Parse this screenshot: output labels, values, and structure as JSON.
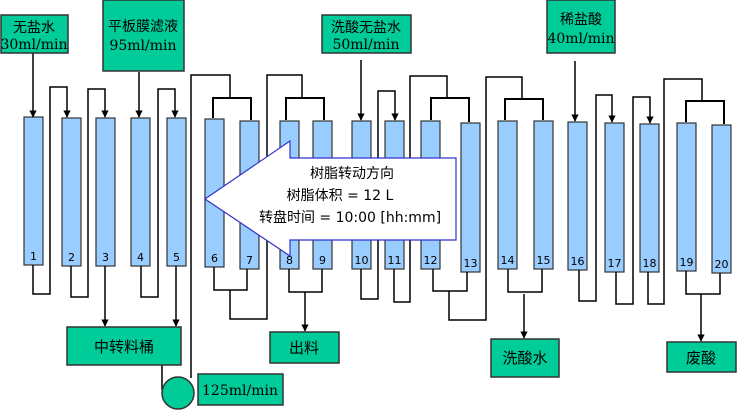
{
  "inputs": {
    "water": {
      "label": "无盐水",
      "rate": "30ml/min"
    },
    "filtrate": {
      "label": "平板膜滤液",
      "rate": "95ml/min"
    },
    "acid_wash_water": {
      "label": "洗酸无盐水",
      "rate": "50ml/min"
    },
    "dilute_acid": {
      "label": "稀盐酸",
      "rate": "40ml/min"
    }
  },
  "outputs": {
    "transfer_tank": "中转料桶",
    "discharge": "出料",
    "acid_wash_effluent": "洗酸水",
    "waste_acid": "废酸"
  },
  "pump": {
    "rate": "125ml/min"
  },
  "callout": {
    "direction": "树脂转动方向",
    "resin_volume": "树脂体积 = 12 L",
    "carousel_time": "转盘时间 = 10:00  [hh:mm]"
  },
  "columns": [
    "1",
    "2",
    "3",
    "4",
    "5",
    "6",
    "7",
    "8",
    "9",
    "10",
    "11",
    "12",
    "13",
    "14",
    "15",
    "16",
    "17",
    "18",
    "19",
    "20"
  ],
  "colors": {
    "box": "#00cc99",
    "column": "#99ccff",
    "callout_border": "#3333cc"
  }
}
